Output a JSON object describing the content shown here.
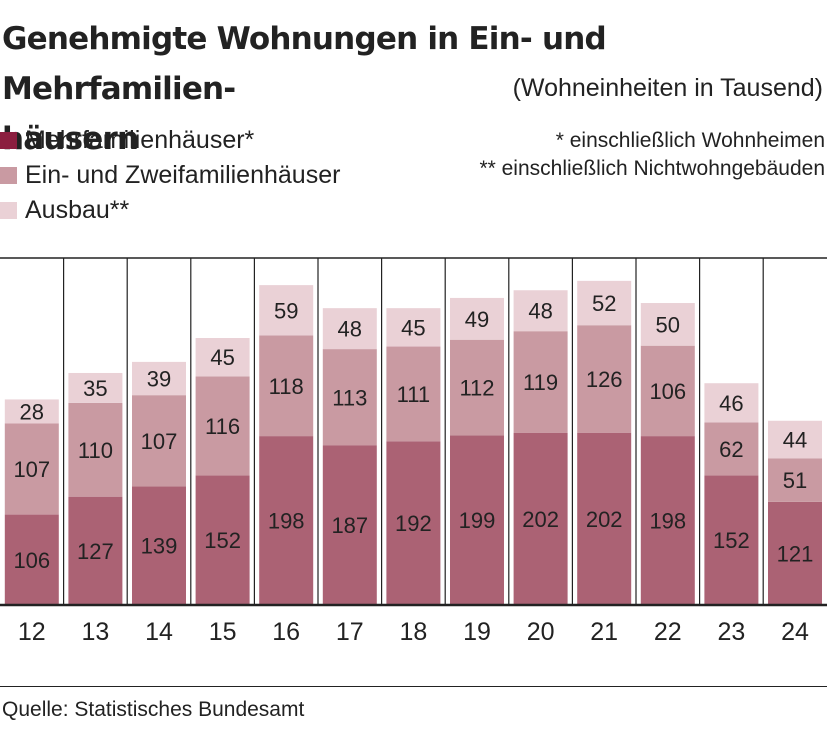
{
  "title": "Genehmigte Wohnungen in Ein- und Mehrfamilien-häusern",
  "title_lines": [
    "Genehmigte Wohnungen in Ein- und Mehrfamilien-",
    "häusern"
  ],
  "subtitle": "(Wohneinheiten in Tausend)",
  "footnotes": [
    "* einschließlich Wohnheimen",
    "** einschließlich Nichtwohngebäuden"
  ],
  "source": "Quelle: Statistisches Bundesamt",
  "colors": {
    "multi": "#ab6274",
    "one_two": "#c99aa2",
    "extension": "#ead1d6",
    "legend_multi": "#8b1e3f"
  },
  "chart_data": {
    "type": "bar",
    "stacked": true,
    "categories": [
      "12",
      "13",
      "14",
      "15",
      "16",
      "17",
      "18",
      "19",
      "20",
      "21",
      "22",
      "23",
      "24"
    ],
    "series": [
      {
        "name": "Mehrfamilienhäuser*",
        "values": [
          106,
          127,
          139,
          152,
          198,
          187,
          192,
          199,
          202,
          202,
          198,
          152,
          121
        ]
      },
      {
        "name": "Ein- und Zweifamilienhäuser",
        "values": [
          107,
          110,
          107,
          116,
          118,
          113,
          111,
          112,
          119,
          126,
          106,
          62,
          51
        ]
      },
      {
        "name": "Ausbau**",
        "values": [
          28,
          35,
          39,
          45,
          59,
          48,
          45,
          49,
          48,
          52,
          50,
          46,
          44
        ]
      }
    ],
    "ylim": [
      0,
      380
    ],
    "legend": "top-left",
    "grid": false
  }
}
